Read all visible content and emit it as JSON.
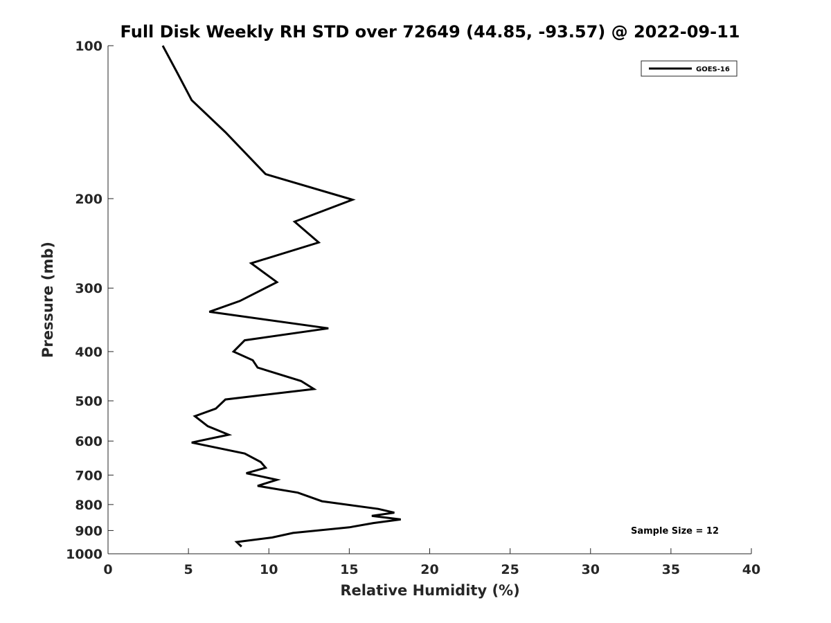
{
  "chart_data": {
    "type": "line",
    "title": "Full Disk Weekly RH STD over 72649 (44.85, -93.57) @ 2022-09-11",
    "xlabel": "Relative Humidity (%)",
    "ylabel": "Pressure (mb)",
    "xlim": [
      0,
      40
    ],
    "ylim": [
      100,
      1000
    ],
    "yscale": "log",
    "y_reversed": true,
    "grid": false,
    "legend_position": "top-right",
    "x_ticks": [
      0,
      5,
      10,
      15,
      20,
      25,
      30,
      35,
      40
    ],
    "x_tick_labels": [
      "0",
      "5",
      "10",
      "15",
      "20",
      "25",
      "30",
      "35",
      "40"
    ],
    "y_ticks": [
      100,
      200,
      300,
      400,
      500,
      600,
      700,
      800,
      900,
      1000
    ],
    "y_tick_labels": [
      "100",
      "200",
      "300",
      "400",
      "500",
      "600",
      "700",
      "800",
      "900",
      "1000"
    ],
    "annotation": "Sample Size = 12",
    "series": [
      {
        "name": "GOES-16",
        "color": "#000000",
        "x": [
          3.4,
          4.3,
          5.2,
          7.3,
          9.8,
          15.2,
          11.6,
          13.1,
          8.9,
          10.5,
          8.2,
          6.3,
          13.7,
          8.5,
          7.8,
          9.0,
          9.3,
          12.0,
          12.8,
          7.3,
          6.7,
          5.4,
          6.2,
          7.5,
          5.2,
          8.5,
          9.5,
          9.8,
          8.6,
          10.5,
          9.3,
          11.8,
          13.3,
          16.8,
          17.8,
          16.4,
          18.2,
          16.5,
          15.0,
          11.5,
          10.2,
          8.0,
          8.3
        ],
        "y": [
          100,
          113,
          128,
          148,
          179,
          201,
          222,
          244,
          268,
          292,
          318,
          334,
          360,
          380,
          400,
          416,
          430,
          457,
          474,
          497,
          518,
          536,
          561,
          583,
          604,
          635,
          660,
          677,
          694,
          715,
          735,
          758,
          788,
          816,
          830,
          842,
          856,
          870,
          887,
          910,
          929,
          948,
          968
        ]
      }
    ]
  }
}
